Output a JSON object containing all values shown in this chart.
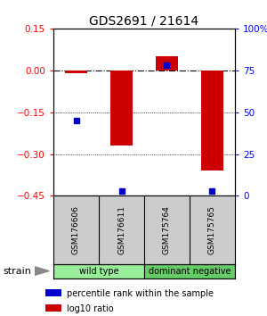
{
  "title": "GDS2691 / 21614",
  "samples": [
    "GSM176606",
    "GSM176611",
    "GSM175764",
    "GSM175765"
  ],
  "log10_ratio": [
    -0.01,
    -0.27,
    0.05,
    -0.36
  ],
  "percentile_rank": [
    45,
    3,
    78,
    3
  ],
  "ylim_left": [
    -0.45,
    0.15
  ],
  "ylim_right": [
    0,
    100
  ],
  "left_ticks": [
    0.15,
    0.0,
    -0.15,
    -0.3,
    -0.45
  ],
  "right_ticks": [
    100,
    75,
    50,
    25,
    0
  ],
  "bar_color": "#cc0000",
  "dot_color": "#0000cc",
  "sample_box_color": "#cccccc",
  "groups": [
    {
      "label": "wild type",
      "samples": [
        0,
        1
      ],
      "color": "#99ee99"
    },
    {
      "label": "dominant negative",
      "samples": [
        2,
        3
      ],
      "color": "#66cc66"
    }
  ],
  "strain_label": "strain",
  "legend_items": [
    {
      "color": "#cc0000",
      "label": "log10 ratio"
    },
    {
      "color": "#0000cc",
      "label": "percentile rank within the sample"
    }
  ],
  "background_color": "#ffffff",
  "title_fontsize": 10,
  "tick_fontsize": 7.5,
  "sample_fontsize": 6.5,
  "group_fontsize": 7,
  "legend_fontsize": 7
}
